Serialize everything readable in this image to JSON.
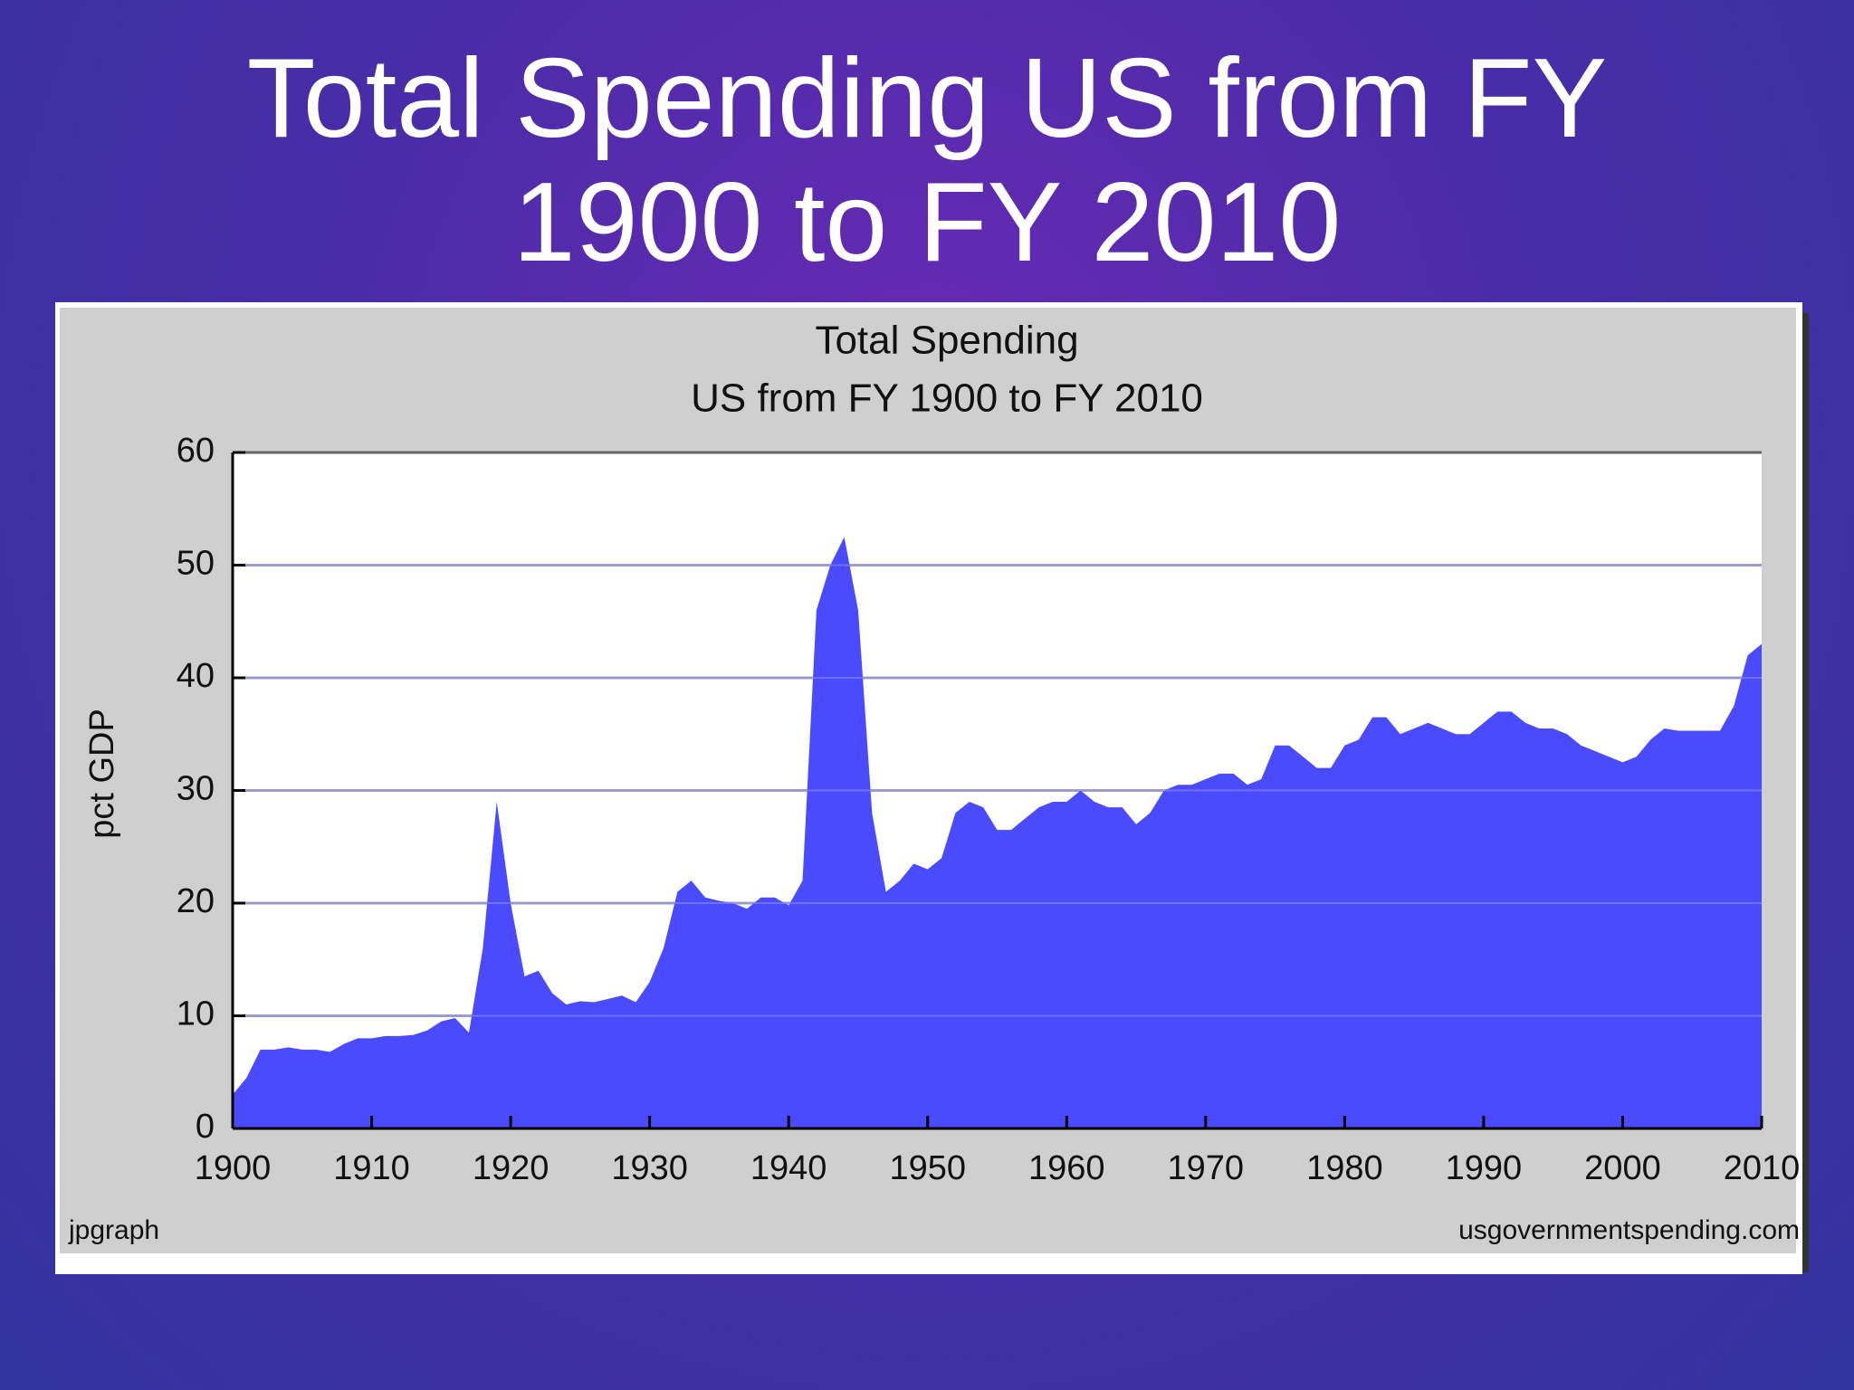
{
  "slide_title": [
    "Total Spending US from FY",
    "1900 to FY 2010"
  ],
  "chart_data": {
    "type": "area",
    "title": "Total Spending",
    "subtitle": "US from FY 1900 to FY 2010",
    "y_label": "pct GDP",
    "x": [
      1900,
      1901,
      1902,
      1903,
      1904,
      1905,
      1906,
      1907,
      1908,
      1909,
      1910,
      1911,
      1912,
      1913,
      1914,
      1915,
      1916,
      1917,
      1918,
      1919,
      1920,
      1921,
      1922,
      1923,
      1924,
      1925,
      1926,
      1927,
      1928,
      1929,
      1930,
      1931,
      1932,
      1933,
      1934,
      1935,
      1936,
      1937,
      1938,
      1939,
      1940,
      1941,
      1942,
      1943,
      1944,
      1945,
      1946,
      1947,
      1948,
      1949,
      1950,
      1951,
      1952,
      1953,
      1954,
      1955,
      1956,
      1957,
      1958,
      1959,
      1960,
      1961,
      1962,
      1963,
      1964,
      1965,
      1966,
      1967,
      1968,
      1969,
      1970,
      1971,
      1972,
      1973,
      1974,
      1975,
      1976,
      1977,
      1978,
      1979,
      1980,
      1981,
      1982,
      1983,
      1984,
      1985,
      1986,
      1987,
      1988,
      1989,
      1990,
      1991,
      1992,
      1993,
      1994,
      1995,
      1996,
      1997,
      1998,
      1999,
      2000,
      2001,
      2002,
      2003,
      2004,
      2005,
      2006,
      2007,
      2008,
      2009,
      2010
    ],
    "series": [
      {
        "name": "Total Spending",
        "color": "#4a4aff",
        "values": [
          3,
          4.5,
          7,
          7,
          7.2,
          7,
          7,
          6.8,
          7.5,
          8,
          8,
          8.2,
          8.2,
          8.3,
          8.7,
          9.5,
          9.8,
          8.5,
          16,
          29,
          20,
          13.5,
          14,
          12,
          11,
          11.3,
          11.2,
          11.5,
          11.8,
          11.2,
          13,
          16,
          21,
          22,
          20.5,
          20.2,
          20,
          19.5,
          20.5,
          20.5,
          19.8,
          22,
          46,
          50,
          52.5,
          46,
          28,
          21,
          22,
          23.5,
          23,
          24,
          28,
          29,
          28.5,
          26.5,
          26.5,
          27.5,
          28.5,
          29,
          29,
          30,
          29,
          28.5,
          28.5,
          27,
          28,
          30,
          30.5,
          30.5,
          31,
          31.5,
          31.5,
          30.5,
          31,
          34,
          34,
          33,
          32,
          32,
          34,
          34.5,
          36.5,
          36.5,
          35,
          35.5,
          36,
          35.5,
          35,
          35,
          36,
          37,
          37,
          36,
          35.5,
          35.5,
          35,
          34,
          33.5,
          33,
          32.5,
          33,
          34.5,
          35.5,
          35.3,
          35.3,
          35.3,
          35.3,
          37.5,
          42,
          43
        ]
      }
    ],
    "xlim": [
      1900,
      2010
    ],
    "xticks": [
      1900,
      1910,
      1920,
      1930,
      1940,
      1950,
      1960,
      1970,
      1980,
      1990,
      2000,
      2010
    ],
    "ylim": [
      0,
      60
    ],
    "yticks": [
      0,
      10,
      20,
      30,
      40,
      50,
      60
    ],
    "grid": true,
    "footer_left": "jpgraph",
    "footer_right": "usgovernmentspending.com"
  }
}
